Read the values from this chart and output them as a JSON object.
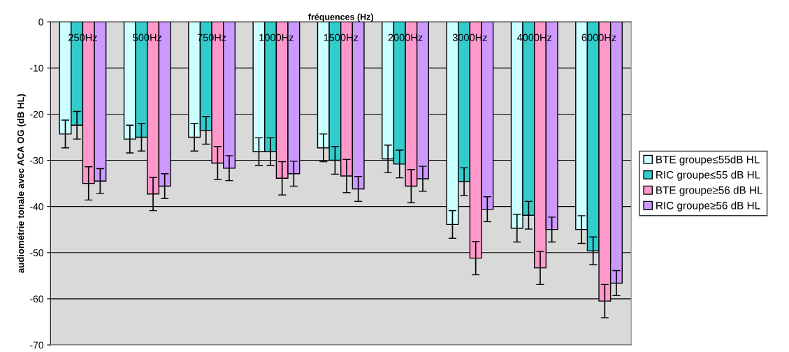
{
  "chart_data": {
    "type": "bar",
    "xlabel": "fréquences (Hz)",
    "ylabel": "audiométrie tonale avec ACA OG (dB HL)",
    "categories": [
      "250Hz",
      "500Hz",
      "750Hz",
      "1000Hz",
      "1500Hz",
      "2000Hz",
      "3000Hz",
      "4000Hz",
      "6000Hz"
    ],
    "series": [
      {
        "name": "BTE groupe≤55dB HL",
        "color": "#ccffff",
        "values": [
          -24.3,
          -25.4,
          -25,
          -28.1,
          -27.3,
          -29.7,
          -43.9,
          -44.7,
          -45
        ],
        "errors": [
          3,
          3,
          3,
          3,
          3,
          3,
          3,
          3,
          3
        ]
      },
      {
        "name": "RIC groupe≤55 dB HL",
        "color": "#33cccc",
        "values": [
          -22.4,
          -25,
          -23.5,
          -28.1,
          -30,
          -30.8,
          -34.6,
          -41.9,
          -49.6
        ],
        "errors": [
          3,
          3,
          3,
          3,
          3,
          3,
          3,
          3,
          3
        ]
      },
      {
        "name": "BTE groupe≥56 dB HL",
        "color": "#ff99cc",
        "values": [
          -35,
          -37.3,
          -30.6,
          -33.9,
          -33.4,
          -35.6,
          -51.2,
          -53.3,
          -60.5
        ],
        "errors": [
          3.6,
          3.6,
          3.6,
          3.6,
          3.6,
          3.6,
          3.6,
          3.6,
          3.6
        ]
      },
      {
        "name": "RIC groupe≥56 dB HL",
        "color": "#cc99ff",
        "values": [
          -34.5,
          -35.6,
          -31.7,
          -32.9,
          -36.2,
          -34,
          -40.6,
          -45,
          -56.6
        ],
        "errors": [
          2.7,
          2.7,
          2.7,
          2.7,
          2.7,
          2.7,
          2.7,
          2.7,
          2.7
        ]
      }
    ],
    "ylim": [
      -70,
      0
    ],
    "yticks": [
      -70,
      -60,
      -50,
      -40,
      -30,
      -20,
      -10,
      0
    ],
    "grid": "y",
    "legend": "right"
  }
}
